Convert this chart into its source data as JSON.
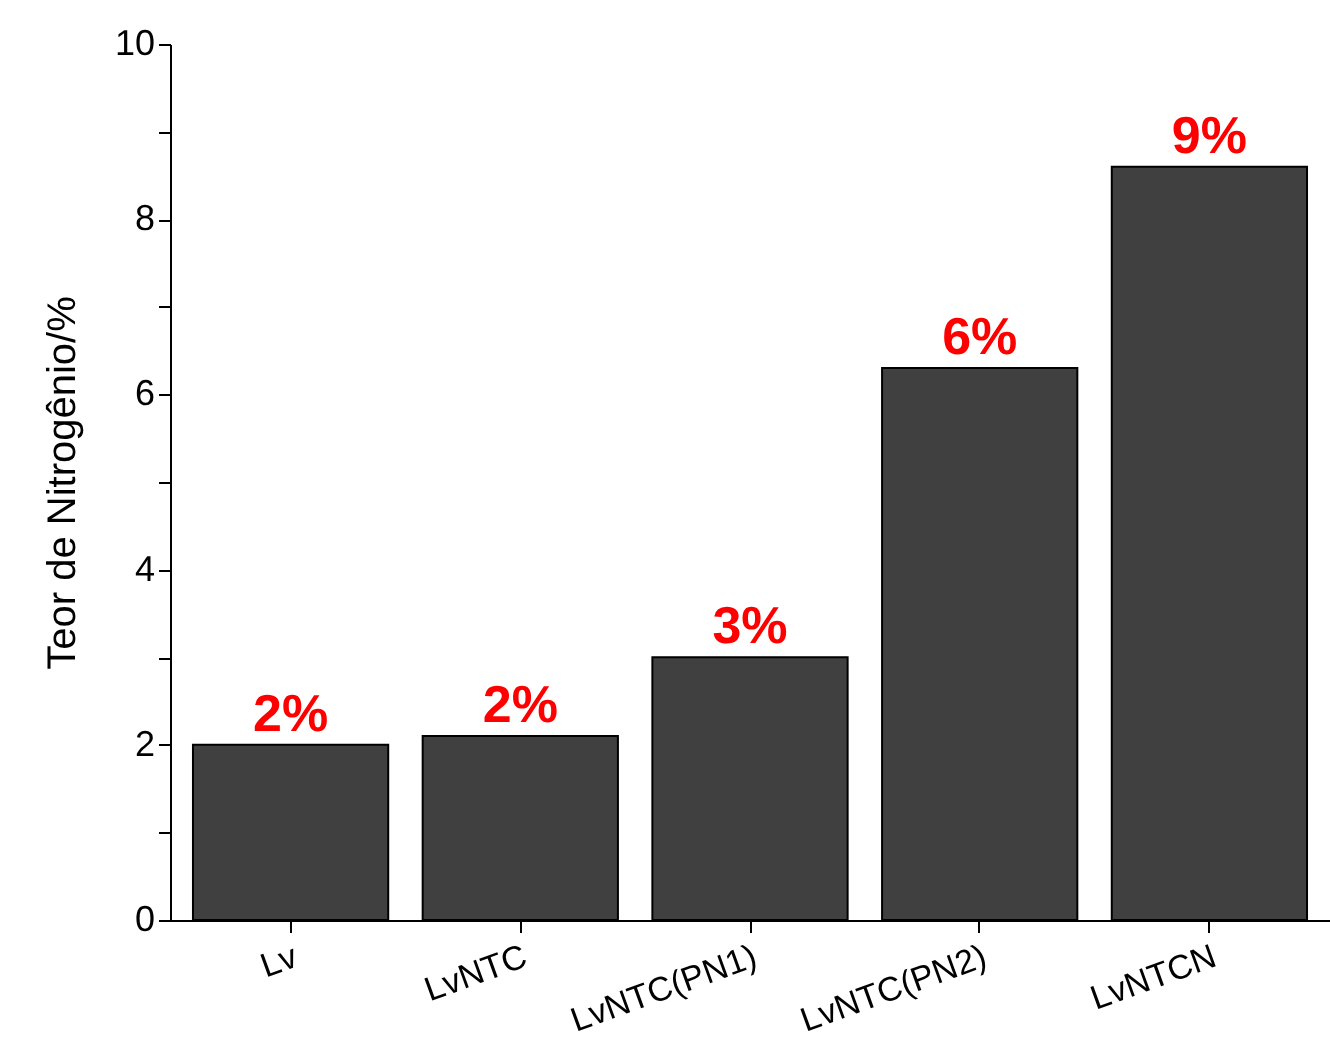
{
  "chart_data": {
    "type": "bar",
    "ylabel": "Teor de Nitrogênio/%",
    "categories": [
      "Lv",
      "LvNTC",
      "LvNTC(PN1)",
      "LvNTC(PN2)",
      "LvNTCN"
    ],
    "values": [
      2.0,
      2.1,
      3.0,
      6.3,
      8.6
    ],
    "value_labels": [
      "2%",
      "2%",
      "3%",
      "6%",
      "9%"
    ],
    "color": "#404040",
    "ylim": [
      0,
      10
    ],
    "yticks": [
      0,
      {
        "value": 1,
        "label": null
      },
      2,
      {
        "value": 3,
        "label": null
      },
      4,
      {
        "value": 5,
        "label": null
      },
      6,
      {
        "value": 7,
        "label": null
      },
      8,
      {
        "value": 9,
        "label": null
      },
      10
    ],
    "grid": false
  }
}
